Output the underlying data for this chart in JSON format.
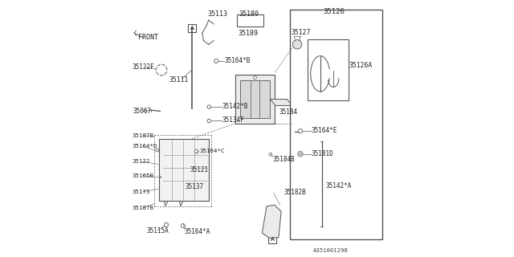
{
  "bg_color": "#ffffff",
  "line_color": "#555555",
  "diagram_id": "A351001298",
  "parts": [
    "35113",
    "35111",
    "35122F",
    "35067",
    "35164*B",
    "35142*B",
    "35134F",
    "35187B",
    "35164*D",
    "35122",
    "35165B",
    "35173",
    "35115A",
    "35164*C",
    "35121",
    "35137",
    "35164*A",
    "35180",
    "35189",
    "35184",
    "35184B",
    "35182B",
    "35126",
    "35127",
    "35126A",
    "35164*E",
    "35181D",
    "35142*A"
  ]
}
